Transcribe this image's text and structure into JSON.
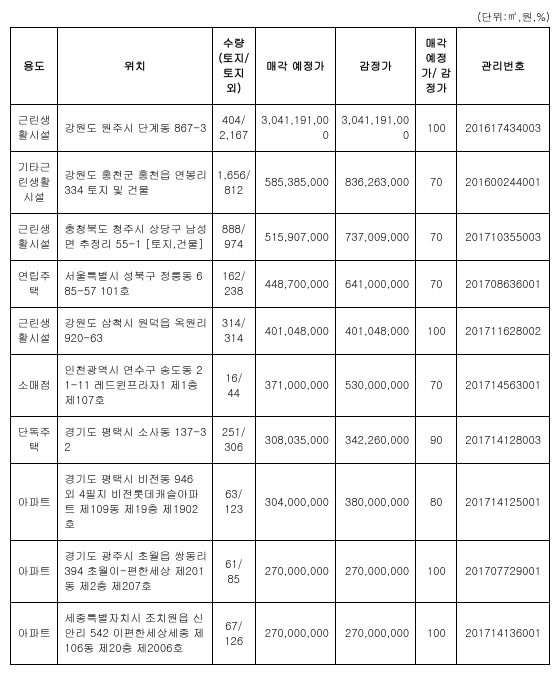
{
  "unit_label": "(단위:㎡,원,%)",
  "headers": {
    "use": "용도",
    "location": "위치",
    "quantity": "수량\n(토지/\n토지외)",
    "sale_price": "매각\n예정가",
    "appraisal": "감정가",
    "ratio": "매각\n예정가/\n감정가",
    "mgmt_no": "관리번호"
  },
  "rows": [
    {
      "use": "근린생활시설",
      "location": "강원도 원주시 단계동 867-3",
      "quantity": "404/\n2,167",
      "sale_price": "3,041,191,000",
      "appraisal": "3,041,191,000",
      "ratio": "100",
      "mgmt_no": "201617434003"
    },
    {
      "use": "기타근린생활시설",
      "location": "강원도 홍천군 홍천읍 연봉리 334 토지 및 건물",
      "quantity": "1,656/\n812",
      "sale_price": "585,385,000",
      "appraisal": "836,263,000",
      "ratio": "70",
      "mgmt_no": "201600244001"
    },
    {
      "use": "근린생활시설",
      "location": "충청북도 청주시 상당구 남성면 추정리 55-1 [토지,건물]",
      "quantity": "888/\n974",
      "sale_price": "515,907,000",
      "appraisal": "737,009,000",
      "ratio": "70",
      "mgmt_no": "201710355003"
    },
    {
      "use": "연립주택",
      "location": "서울특별시 성북구 정릉동 685-57 101호",
      "quantity": "162/\n238",
      "sale_price": "448,700,000",
      "appraisal": "641,000,000",
      "ratio": "70",
      "mgmt_no": "201708636001"
    },
    {
      "use": "근린생활시설",
      "location": "강원도 삼척시 원덕읍 옥원리 920-63",
      "quantity": "314/\n314",
      "sale_price": "401,048,000",
      "appraisal": "401,048,000",
      "ratio": "100",
      "mgmt_no": "201711628002"
    },
    {
      "use": "소매점",
      "location": "인천광역시 연수구 송도동 21-11 레드윈프라자1 제1층 제107호",
      "quantity": "16/\n44",
      "sale_price": "371,000,000",
      "appraisal": "530,000,000",
      "ratio": "70",
      "mgmt_no": "201714563001"
    },
    {
      "use": "단독주택",
      "location": "경기도 평택시 소사동 137-32",
      "quantity": "251/\n306",
      "sale_price": "308,035,000",
      "appraisal": "342,260,000",
      "ratio": "90",
      "mgmt_no": "201714128003"
    },
    {
      "use": "아파트",
      "location": "경기도 평택시 비전동 946 외 4필지 비전롯데캐슬아파트 제109동 제19층 제1902호",
      "quantity": "63/\n123",
      "sale_price": "304,000,000",
      "appraisal": "380,000,000",
      "ratio": "80",
      "mgmt_no": "201714125001"
    },
    {
      "use": "아파트",
      "location": "경기도 광주시 초월읍 쌍동리 394 초월이-편한세상 제201동 제2층 제207호",
      "quantity": "61/\n85",
      "sale_price": "270,000,000",
      "appraisal": "270,000,000",
      "ratio": "100",
      "mgmt_no": "201707729001"
    },
    {
      "use": "아파트",
      "location": "세종특별자치시 조치원읍 신안리 542 이편한세상세종 제106동 제20층 제2006호",
      "quantity": "67/\n126",
      "sale_price": "270,000,000",
      "appraisal": "270,000,000",
      "ratio": "100",
      "mgmt_no": "201714136001"
    }
  ]
}
